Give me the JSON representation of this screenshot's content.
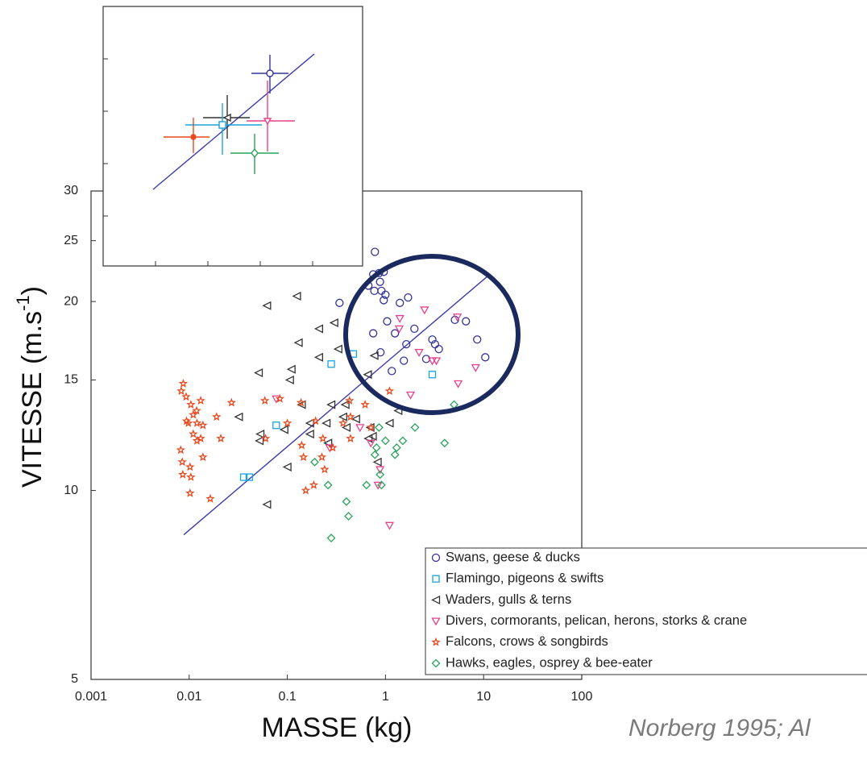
{
  "chart_data": {
    "type": "scatter",
    "x_label": "MASSE (kg)",
    "y_label": {
      "text": "VITESSE (m.s",
      "sup": "-1",
      "tail": ")"
    },
    "source": "Norberg 1995; Al",
    "xscale": "log",
    "yscale": "log",
    "xlim": [
      0.001,
      100
    ],
    "ylim": [
      5,
      30
    ],
    "xticks": [
      0.001,
      0.01,
      0.1,
      1,
      10,
      100
    ],
    "yticks": [
      5,
      10,
      15,
      20,
      25,
      30
    ],
    "legend": "lower right",
    "fit_line": {
      "x": [
        0.0088,
        10.8
      ],
      "values": [
        8.5,
        21.9
      ],
      "color": "#3b3bb0"
    },
    "series": [
      {
        "name": "Swans, geese & ducks",
        "color": "#33339a",
        "marker": "circle",
        "x": [
          0.78,
          0.75,
          0.86,
          0.96,
          0.88,
          0.67,
          0.77,
          0.91,
          1.0,
          0.96,
          0.34,
          1.4,
          1.7,
          1.04,
          1.25,
          1.97,
          0.75,
          1.63,
          3.0,
          3.2,
          3.5,
          0.89,
          1.16,
          1.54,
          2.6,
          5.1,
          6.6,
          8.6,
          10.4
        ],
        "values": [
          24.0,
          22.1,
          22.2,
          22.3,
          21.5,
          21.2,
          20.8,
          20.8,
          20.5,
          20.1,
          19.9,
          19.9,
          20.3,
          18.6,
          17.8,
          18.1,
          17.8,
          17.1,
          17.4,
          17.1,
          16.8,
          16.6,
          15.5,
          16.1,
          16.2,
          18.7,
          18.6,
          17.4,
          16.3
        ]
      },
      {
        "name": "Flamingo, pigeons & swifts",
        "color": "#1aa3dc",
        "marker": "square",
        "x": [
          0.28,
          0.47,
          3.0,
          0.077,
          0.036,
          0.041
        ],
        "values": [
          15.9,
          16.5,
          15.3,
          12.7,
          10.5,
          10.5
        ]
      },
      {
        "name": "Waders, gulls & terns",
        "color": "#333333",
        "marker": "triangle-left",
        "x": [
          0.062,
          0.125,
          0.21,
          0.3,
          0.13,
          0.051,
          0.11,
          0.106,
          0.21,
          0.33,
          0.77,
          0.66,
          0.14,
          0.28,
          0.39,
          0.032,
          0.053,
          0.052,
          0.093,
          0.17,
          0.25,
          0.37,
          0.5,
          0.4,
          0.7,
          1.1,
          1.35,
          0.74,
          0.67,
          0.26,
          0.17,
          0.1,
          0.062,
          0.83
        ],
        "values": [
          19.7,
          20.4,
          18.1,
          18.5,
          17.2,
          15.4,
          15.6,
          15.0,
          16.3,
          16.8,
          16.4,
          15.3,
          13.7,
          13.7,
          13.7,
          13.1,
          12.3,
          12.0,
          12.5,
          12.8,
          12.8,
          13.1,
          13.0,
          12.6,
          12.6,
          12.8,
          13.4,
          12.2,
          12.1,
          11.9,
          12.3,
          10.9,
          9.5,
          11.1
        ]
      },
      {
        "name": "Divers, cormorants, pelican, herons, storks & crane",
        "color": "#e6418c",
        "marker": "triangle-down",
        "x": [
          2.5,
          1.4,
          5.4,
          1.38,
          2.2,
          3.3,
          3.0,
          8.3,
          5.5,
          1.8,
          0.077,
          0.55,
          0.71,
          0.27,
          0.88,
          0.84,
          1.1
        ],
        "values": [
          19.4,
          18.8,
          18.9,
          18.1,
          16.6,
          16.1,
          16.1,
          15.7,
          14.8,
          14.2,
          14.0,
          12.6,
          11.9,
          11.7,
          10.8,
          10.2,
          8.8
        ]
      },
      {
        "name": "Falcons, crows & songbirds",
        "color": "#e84a1f",
        "marker": "star",
        "x": [
          0.0086,
          0.0087,
          0.0083,
          0.0093,
          0.0104,
          0.0119,
          0.0131,
          0.0094,
          0.011,
          0.012,
          0.0098,
          0.0082,
          0.0085,
          0.0102,
          0.0104,
          0.0102,
          0.0138,
          0.0138,
          0.0131,
          0.012,
          0.011,
          0.0164,
          0.019,
          0.021,
          0.027,
          0.059,
          0.084,
          0.138,
          0.194,
          0.1,
          0.06,
          0.14,
          0.29,
          0.37,
          0.44,
          0.44,
          0.225,
          0.23,
          0.154,
          0.186,
          0.24,
          0.146,
          0.62,
          0.71,
          1.1,
          0.43
        ],
        "values": [
          10.6,
          14.8,
          14.4,
          14.1,
          13.7,
          13.4,
          13.9,
          12.9,
          13.2,
          12.8,
          12.8,
          11.6,
          11.1,
          10.9,
          10.5,
          9.9,
          11.3,
          12.7,
          12.1,
          12.0,
          12.3,
          9.7,
          13.1,
          12.1,
          13.8,
          13.9,
          14.0,
          13.8,
          12.9,
          12.8,
          12.1,
          11.8,
          11.7,
          12.8,
          13.1,
          12.1,
          11.3,
          12.1,
          10.0,
          10.2,
          10.8,
          11.3,
          13.7,
          12.6,
          14.4,
          13.9
        ]
      },
      {
        "name": "Hawks, eagles, osprey & bee-eater",
        "color": "#29a35a",
        "marker": "diamond",
        "x": [
          5.0,
          2.0,
          0.86,
          1.5,
          1.0,
          0.81,
          0.78,
          4.0,
          1.3,
          1.25,
          0.88,
          0.64,
          0.26,
          0.91,
          0.19,
          0.4,
          0.42,
          0.28,
          2.8
        ],
        "values": [
          13.7,
          12.6,
          12.6,
          12.0,
          12.0,
          11.7,
          11.4,
          11.9,
          11.7,
          11.4,
          10.6,
          10.2,
          10.2,
          10.2,
          11.1,
          9.6,
          9.1,
          8.4,
          7.7
        ]
      }
    ]
  }
}
